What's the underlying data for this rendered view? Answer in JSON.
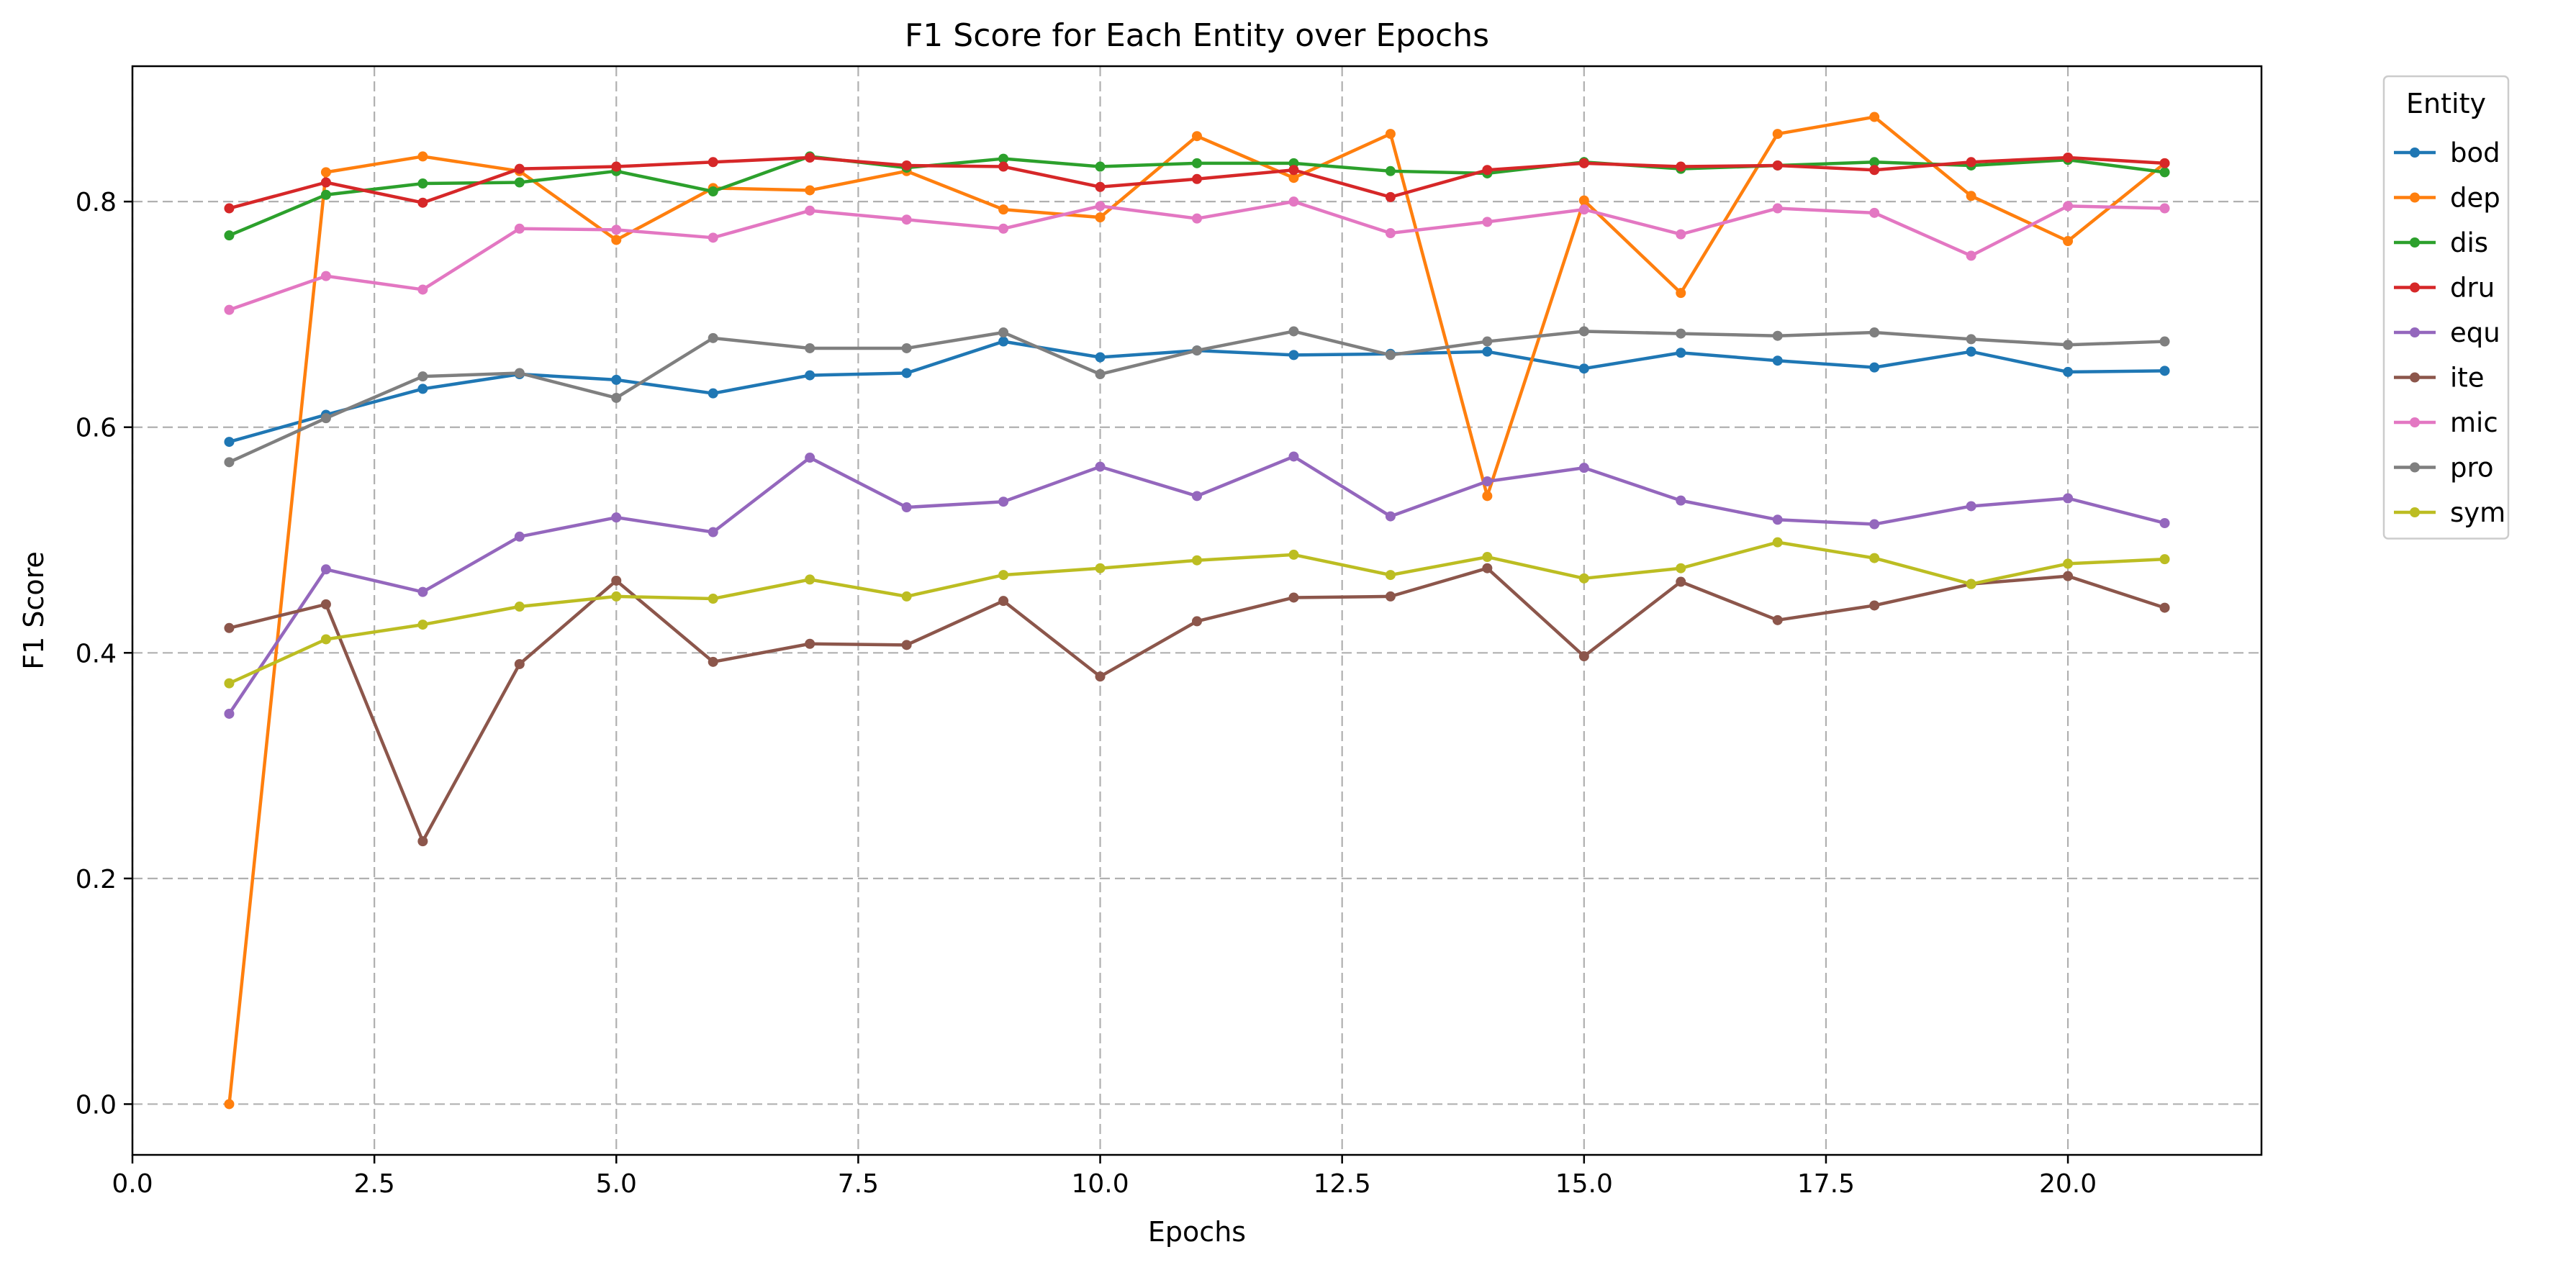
{
  "chart_data": {
    "type": "line",
    "title": "F1 Score for Each Entity over Epochs",
    "xlabel": "Epochs",
    "ylabel": "F1 Score",
    "xlim": [
      0,
      22
    ],
    "ylim": [
      -0.045,
      0.92
    ],
    "xticks": [
      0,
      2.5,
      5,
      7.5,
      10,
      12.5,
      15,
      17.5,
      20
    ],
    "xtick_labels": [
      "0.0",
      "2.5",
      "5.0",
      "7.5",
      "10.0",
      "12.5",
      "15.0",
      "17.5",
      "20.0"
    ],
    "yticks": [
      0,
      0.2,
      0.4,
      0.6,
      0.8
    ],
    "ytick_labels": [
      "0.0",
      "0.2",
      "0.4",
      "0.6",
      "0.8"
    ],
    "grid": true,
    "legend": {
      "title": "Entity",
      "placement": "outside-right"
    },
    "x": [
      1,
      2,
      3,
      4,
      5,
      6,
      7,
      8,
      9,
      10,
      11,
      12,
      13,
      14,
      15,
      16,
      17,
      18,
      19,
      20,
      21
    ],
    "series": [
      {
        "name": "bod",
        "color": "#1f77b4",
        "values": [
          0.587,
          0.611,
          0.634,
          0.647,
          0.642,
          0.63,
          0.646,
          0.648,
          0.676,
          0.662,
          0.668,
          0.664,
          0.665,
          0.667,
          0.652,
          0.666,
          0.659,
          0.653,
          0.667,
          0.649,
          0.65
        ]
      },
      {
        "name": "dep",
        "color": "#ff7f0e",
        "values": [
          0.0,
          0.826,
          0.84,
          0.827,
          0.766,
          0.812,
          0.81,
          0.827,
          0.793,
          0.786,
          0.858,
          0.821,
          0.86,
          0.539,
          0.801,
          0.719,
          0.86,
          0.875,
          0.805,
          0.765,
          0.834
        ]
      },
      {
        "name": "dis",
        "color": "#2ca02c",
        "values": [
          0.77,
          0.806,
          0.816,
          0.817,
          0.827,
          0.809,
          0.84,
          0.83,
          0.838,
          0.831,
          0.834,
          0.834,
          0.827,
          0.825,
          0.835,
          0.829,
          0.832,
          0.835,
          0.832,
          0.837,
          0.826
        ]
      },
      {
        "name": "dru",
        "color": "#d62728",
        "values": [
          0.794,
          0.817,
          0.799,
          0.829,
          0.831,
          0.835,
          0.839,
          0.832,
          0.831,
          0.813,
          0.82,
          0.828,
          0.804,
          0.828,
          0.834,
          0.831,
          0.832,
          0.828,
          0.835,
          0.839,
          0.834
        ]
      },
      {
        "name": "equ",
        "color": "#9467bd",
        "values": [
          0.346,
          0.474,
          0.454,
          0.503,
          0.52,
          0.507,
          0.573,
          0.529,
          0.534,
          0.565,
          0.539,
          0.574,
          0.521,
          0.552,
          0.564,
          0.535,
          0.518,
          0.514,
          0.53,
          0.537,
          0.515
        ]
      },
      {
        "name": "ite",
        "color": "#8c564b",
        "values": [
          0.422,
          0.443,
          0.233,
          0.39,
          0.464,
          0.392,
          0.408,
          0.407,
          0.446,
          0.379,
          0.428,
          0.449,
          0.45,
          0.475,
          0.397,
          0.463,
          0.429,
          0.442,
          0.461,
          0.468,
          0.44
        ]
      },
      {
        "name": "mic",
        "color": "#e377c2",
        "values": [
          0.704,
          0.734,
          0.722,
          0.776,
          0.775,
          0.768,
          0.792,
          0.784,
          0.776,
          0.796,
          0.785,
          0.8,
          0.772,
          0.782,
          0.793,
          0.771,
          0.794,
          0.79,
          0.752,
          0.796,
          0.794
        ]
      },
      {
        "name": "pro",
        "color": "#7f7f7f",
        "values": [
          0.569,
          0.608,
          0.645,
          0.648,
          0.626,
          0.679,
          0.67,
          0.67,
          0.684,
          0.647,
          0.668,
          0.685,
          0.664,
          0.676,
          0.685,
          0.683,
          0.681,
          0.684,
          0.678,
          0.673,
          0.676
        ]
      },
      {
        "name": "sym",
        "color": "#bcbd22",
        "values": [
          0.373,
          0.412,
          0.425,
          0.441,
          0.45,
          0.448,
          0.465,
          0.45,
          0.469,
          0.475,
          0.482,
          0.487,
          0.469,
          0.485,
          0.466,
          0.475,
          0.498,
          0.484,
          0.461,
          0.479,
          0.483
        ]
      }
    ]
  }
}
